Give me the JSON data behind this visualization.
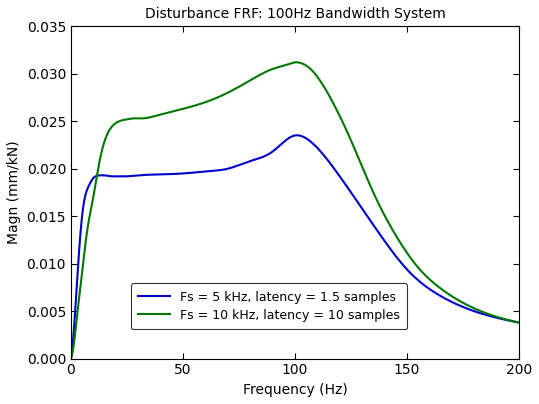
{
  "title": "Disturbance FRF: 100Hz Bandwidth System",
  "xlabel": "Frequency (Hz)",
  "ylabel": "Magn (mm/kN)",
  "xlim": [
    0,
    200
  ],
  "ylim": [
    0,
    0.035
  ],
  "yticks": [
    0,
    0.005,
    0.01,
    0.015,
    0.02,
    0.025,
    0.03,
    0.035
  ],
  "xticks": [
    0,
    50,
    100,
    150,
    200
  ],
  "line1_color": "#0000CC",
  "line2_color": "#007700",
  "line1_label": "Fs = 5 kHz, latency = 1.5 samples",
  "line2_label": "Fs = 10 kHz, latency = 10 samples",
  "line_width": 1.5,
  "bg_color": "#ffffff",
  "title_fontsize": 10,
  "axis_fontsize": 10,
  "tick_fontsize": 10,
  "f_blue": [
    0,
    1,
    3,
    5,
    8,
    10,
    13,
    15,
    18,
    20,
    25,
    30,
    40,
    50,
    60,
    70,
    80,
    90,
    100,
    105,
    110,
    115,
    120,
    130,
    140,
    150,
    165,
    180,
    200
  ],
  "v_blue": [
    0,
    0.002,
    0.009,
    0.015,
    0.0182,
    0.019,
    0.0193,
    0.0193,
    0.0192,
    0.0192,
    0.0192,
    0.0193,
    0.0194,
    0.0195,
    0.0197,
    0.02,
    0.0208,
    0.0218,
    0.0235,
    0.0232,
    0.0222,
    0.0208,
    0.0192,
    0.0158,
    0.0124,
    0.0094,
    0.0066,
    0.005,
    0.0038
  ],
  "f_green": [
    0,
    1,
    3,
    5,
    7,
    10,
    13,
    16,
    20,
    25,
    28,
    30,
    32,
    35,
    40,
    45,
    50,
    60,
    70,
    80,
    90,
    97,
    100,
    103,
    107,
    112,
    118,
    125,
    135,
    145,
    155,
    165,
    180,
    200
  ],
  "v_green": [
    0,
    0.001,
    0.005,
    0.009,
    0.013,
    0.017,
    0.021,
    0.0235,
    0.0248,
    0.0252,
    0.0253,
    0.0253,
    0.0253,
    0.0254,
    0.0257,
    0.026,
    0.0263,
    0.027,
    0.028,
    0.0293,
    0.0305,
    0.031,
    0.0312,
    0.0311,
    0.0305,
    0.029,
    0.0265,
    0.023,
    0.0175,
    0.013,
    0.0096,
    0.0074,
    0.0053,
    0.0038
  ]
}
